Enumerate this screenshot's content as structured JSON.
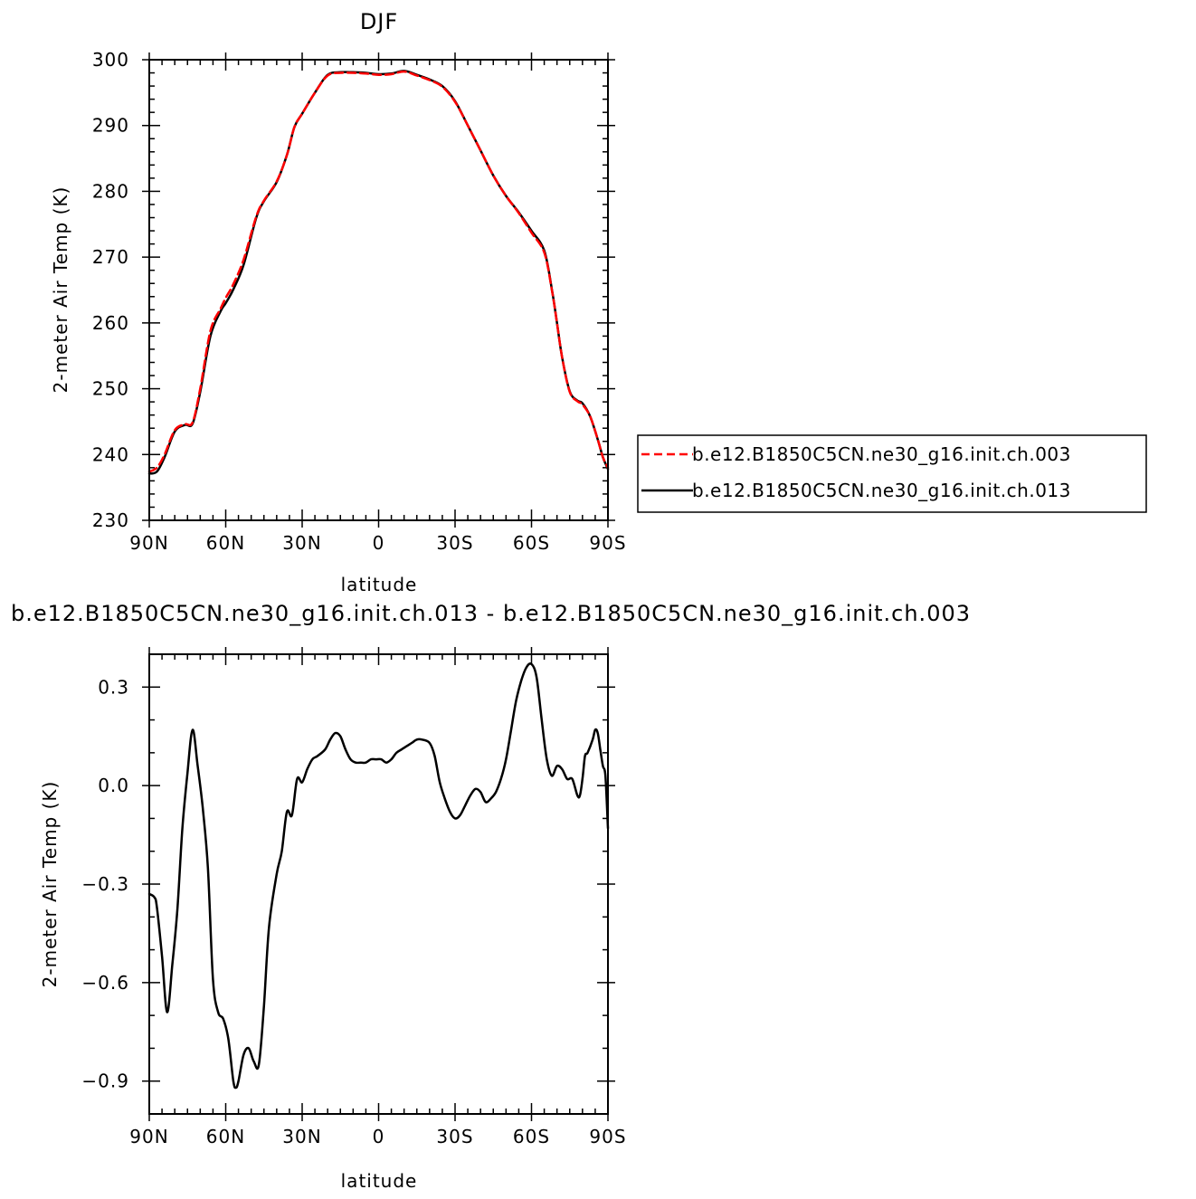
{
  "chart_data": [
    {
      "type": "line",
      "title": "DJF",
      "xlabel": "latitude",
      "ylabel": "2-meter Air Temp (K)",
      "xlim": [
        90,
        -90
      ],
      "ylim": [
        230,
        300
      ],
      "xticks": [
        90,
        60,
        30,
        0,
        -30,
        -60,
        -90
      ],
      "xtick_labels": [
        "90N",
        "60N",
        "30N",
        "0",
        "30S",
        "60S",
        "90S"
      ],
      "yticks": [
        230,
        240,
        250,
        260,
        270,
        280,
        290,
        300
      ],
      "ytick_labels": [
        "230",
        "240",
        "250",
        "260",
        "270",
        "280",
        "290",
        "300"
      ],
      "legend_position": "right",
      "series": [
        {
          "name": "b.e12.B1850C5CN.ne30_g16.init.ch.003",
          "color": "#ff0000",
          "dash": "dashed",
          "x": [
            90,
            87,
            84,
            80,
            76,
            73,
            70,
            66,
            62,
            60,
            57,
            53,
            48,
            45,
            40,
            36,
            33,
            30,
            25,
            20,
            15,
            10,
            5,
            0,
            -5,
            -10,
            -15,
            -20,
            -25,
            -30,
            -35,
            -40,
            -45,
            -50,
            -55,
            -60,
            -65,
            -68,
            -70,
            -72,
            -75,
            -78,
            -80,
            -83,
            -86,
            -88,
            -90
          ],
          "y": [
            237.4,
            238,
            240,
            243.7,
            244.6,
            244.9,
            250,
            258.8,
            262.2,
            263.8,
            265.9,
            269.6,
            276.2,
            278.6,
            281.5,
            285.5,
            289.8,
            291.8,
            295,
            297.6,
            298,
            298,
            297.9,
            297.7,
            297.8,
            298.2,
            297.6,
            296.9,
            295.9,
            293.6,
            290,
            286.2,
            282.4,
            279.3,
            276.7,
            273.7,
            270.7,
            265,
            260,
            254.8,
            249.5,
            248.1,
            247.6,
            245.8,
            242.3,
            239.6,
            238
          ]
        },
        {
          "name": "b.e12.B1850C5CN.ne30_g16.init.ch.013",
          "color": "#000000",
          "dash": "solid",
          "x": [
            90,
            87,
            84,
            80,
            76,
            73,
            70,
            66,
            62,
            60,
            57,
            53,
            48,
            45,
            40,
            36,
            33,
            30,
            25,
            20,
            15,
            10,
            5,
            0,
            -5,
            -10,
            -15,
            -20,
            -25,
            -30,
            -35,
            -40,
            -45,
            -50,
            -55,
            -60,
            -65,
            -68,
            -70,
            -72,
            -75,
            -78,
            -80,
            -83,
            -86,
            -88,
            -90
          ],
          "y": [
            237.1,
            237.4,
            239.6,
            243.5,
            244.5,
            244.7,
            249.5,
            258,
            261.8,
            263,
            265.1,
            268.8,
            276,
            278.5,
            281.4,
            285.5,
            289.8,
            291.8,
            295,
            297.7,
            298.1,
            298.1,
            298,
            297.8,
            297.9,
            298.3,
            297.7,
            297,
            296,
            293.7,
            290,
            286.2,
            282.4,
            279.3,
            276.8,
            274,
            271,
            265.1,
            260,
            254.8,
            249.6,
            248.2,
            247.8,
            245.8,
            242.3,
            239.6,
            237.8
          ]
        }
      ]
    },
    {
      "type": "line",
      "title": "b.e12.B1850C5CN.ne30_g16.init.ch.013 - b.e12.B1850C5CN.ne30_g16.init.ch.003",
      "xlabel": "latitude",
      "ylabel": "2-meter Air Temp (K)",
      "xlim": [
        90,
        -90
      ],
      "ylim": [
        -1.0,
        0.4
      ],
      "xticks": [
        90,
        60,
        30,
        0,
        -30,
        -60,
        -90
      ],
      "xtick_labels": [
        "90N",
        "60N",
        "30N",
        "0",
        "30S",
        "60S",
        "90S"
      ],
      "yticks": [
        -0.9,
        -0.6,
        -0.3,
        0.0,
        0.3
      ],
      "ytick_labels": [
        "−0.9",
        "−0.6",
        "−0.3",
        "0.0",
        "0.3"
      ],
      "series": [
        {
          "color": "#000000",
          "dash": "solid",
          "x": [
            90,
            88,
            87,
            85,
            83,
            81,
            79,
            77,
            75,
            73,
            71,
            69,
            67,
            65,
            63,
            61,
            59,
            57,
            56,
            55,
            53,
            51,
            49,
            47,
            45,
            43,
            40,
            38,
            36,
            34,
            32,
            30,
            28,
            26,
            24,
            21,
            19,
            17,
            15,
            13,
            11,
            9,
            7,
            5,
            3,
            1,
            -1,
            -3,
            -5,
            -7,
            -9,
            -11,
            -13,
            -15,
            -17,
            -20,
            -22,
            -24,
            -26,
            -28,
            -30,
            -32,
            -34,
            -36,
            -38,
            -40,
            -42,
            -44,
            -46,
            -48,
            -50,
            -52,
            -54,
            -56,
            -58,
            -60,
            -62,
            -64,
            -66,
            -68,
            -70,
            -72,
            -74,
            -76,
            -78,
            -79,
            -80,
            -81,
            -82,
            -84,
            -85,
            -86,
            -87,
            -88,
            -89,
            -90
          ],
          "y": [
            -0.33,
            -0.34,
            -0.37,
            -0.52,
            -0.69,
            -0.55,
            -0.38,
            -0.13,
            0.04,
            0.17,
            0.06,
            -0.07,
            -0.25,
            -0.59,
            -0.69,
            -0.71,
            -0.77,
            -0.9,
            -0.92,
            -0.9,
            -0.82,
            -0.8,
            -0.84,
            -0.85,
            -0.67,
            -0.43,
            -0.27,
            -0.2,
            -0.08,
            -0.09,
            0.02,
            0.01,
            0.05,
            0.08,
            0.09,
            0.11,
            0.14,
            0.16,
            0.15,
            0.11,
            0.08,
            0.07,
            0.07,
            0.07,
            0.08,
            0.08,
            0.08,
            0.07,
            0.08,
            0.1,
            0.11,
            0.12,
            0.13,
            0.14,
            0.14,
            0.13,
            0.09,
            0.01,
            -0.04,
            -0.08,
            -0.1,
            -0.09,
            -0.06,
            -0.03,
            -0.01,
            -0.02,
            -0.05,
            -0.04,
            -0.02,
            0.02,
            0.08,
            0.17,
            0.26,
            0.32,
            0.36,
            0.37,
            0.33,
            0.2,
            0.08,
            0.03,
            0.06,
            0.05,
            0.02,
            0.02,
            -0.03,
            -0.03,
            0.02,
            0.09,
            0.1,
            0.14,
            0.17,
            0.16,
            0.11,
            0.06,
            0.03,
            -0.13
          ]
        }
      ]
    }
  ]
}
